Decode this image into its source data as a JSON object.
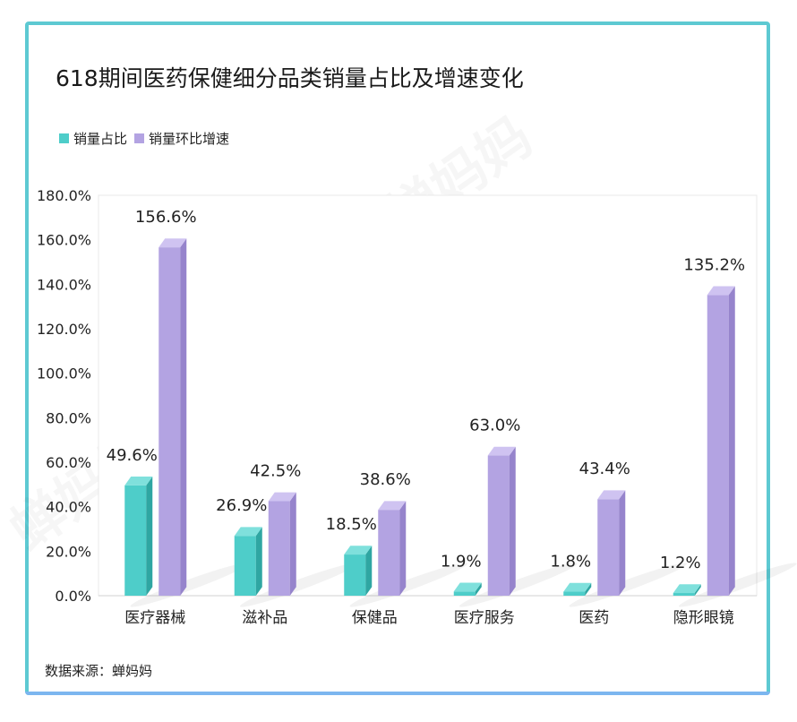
{
  "title": "618期间医药保健细分品类销量占比及增速变化",
  "source": "数据来源：蝉妈妈",
  "watermark": "蝉妈妈",
  "colors": {
    "series1": "#4ecdc9",
    "series2": "#b3a3e2",
    "border": "#5dc9d2"
  },
  "chart_data": {
    "type": "bar",
    "categories": [
      "医疗器械",
      "滋补品",
      "保健品",
      "医疗服务",
      "医药",
      "隐形眼镜"
    ],
    "series": [
      {
        "name": "销量占比",
        "values": [
          49.6,
          26.9,
          18.5,
          1.9,
          1.8,
          1.2
        ],
        "labels": [
          "49.6%",
          "26.9%",
          "18.5%",
          "1.9%",
          "1.8%",
          "1.2%"
        ]
      },
      {
        "name": "销量环比增速",
        "values": [
          156.6,
          42.5,
          38.6,
          63.0,
          43.4,
          135.2
        ],
        "labels": [
          "156.6%",
          "42.5%",
          "38.6%",
          "63.0%",
          "43.4%",
          "135.2%"
        ]
      }
    ],
    "ylim": [
      0,
      180
    ],
    "yticks": [
      "0.0%",
      "20.0%",
      "40.0%",
      "60.0%",
      "80.0%",
      "100.0%",
      "120.0%",
      "140.0%",
      "160.0%",
      "180.0%"
    ],
    "legend_position": "top-left",
    "grid": false
  }
}
